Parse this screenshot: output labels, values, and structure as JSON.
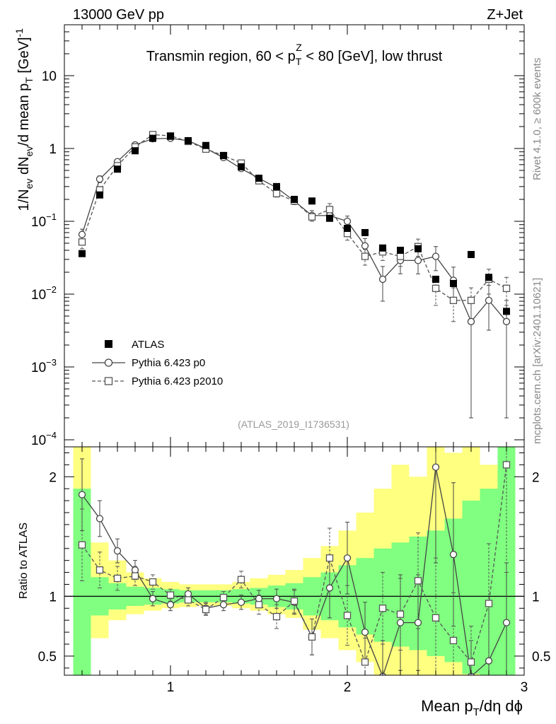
{
  "header": {
    "left": "13000 GeV pp",
    "right": "Z+Jet"
  },
  "side_labels": {
    "rivet": "Rivet 4.1.0, ≥ 600k events",
    "mcplots": "mcplots.cern.ch [arXiv:2401.10621]"
  },
  "colors": {
    "band_outer": "#ffff80",
    "band_inner": "#80ff80",
    "data": "#000000",
    "p0": "#444444",
    "p2010": "#555555"
  },
  "chart_data": [
    {
      "type": "scatter",
      "role": "main",
      "title": "Transmin region, 60 < p_T^Z < 80 [GeV], low thrust",
      "title_parts": {
        "pre": "Transmin region, 60 < p",
        "sub": "T",
        "sup": "Z",
        "post": " < 80 [GeV], low thrust"
      },
      "ylabel": "1/N_ev dN_ev/d mean p_T [GeV]^-1",
      "ylabel_parts": [
        "1/N",
        "ev",
        " dN",
        "ev",
        "/d mean p",
        "T",
        " [GeV]",
        "-1"
      ],
      "yscale": "log",
      "xlim": [
        0.4,
        3.0
      ],
      "ylim": [
        8e-05,
        50
      ],
      "ytick_labels": [
        {
          "value": 0.0001,
          "base": "10",
          "exp": "−4"
        },
        {
          "value": 0.001,
          "base": "10",
          "exp": "−3"
        },
        {
          "value": 0.01,
          "base": "10",
          "exp": "−2"
        },
        {
          "value": 0.1,
          "base": "10",
          "exp": "−1"
        },
        {
          "value": 1,
          "base": "1",
          "exp": ""
        },
        {
          "value": 10,
          "base": "10",
          "exp": ""
        }
      ],
      "watermark": "(ATLAS_2019_I1736531)",
      "legend": {
        "position": "lower-left",
        "entries": [
          "ATLAS",
          "Pythia 6.423 p0",
          "Pythia 6.423 p2010"
        ]
      },
      "series": [
        {
          "name": "ATLAS",
          "marker": "filled-square",
          "x": [
            0.5,
            0.6,
            0.7,
            0.8,
            0.9,
            1.0,
            1.1,
            1.2,
            1.3,
            1.4,
            1.5,
            1.6,
            1.7,
            1.8,
            1.9,
            2.0,
            2.1,
            2.2,
            2.3,
            2.4,
            2.5,
            2.6,
            2.7,
            2.8,
            2.9
          ],
          "y": [
            0.036,
            0.23,
            0.52,
            0.93,
            1.38,
            1.47,
            1.28,
            1.1,
            0.8,
            0.56,
            0.39,
            0.3,
            0.2,
            0.19,
            0.11,
            0.08,
            0.07,
            0.043,
            0.04,
            0.042,
            0.016,
            0.014,
            0.035,
            0.017,
            0.0058
          ]
        },
        {
          "name": "Pythia 6.423 p0",
          "marker": "open-circle",
          "line": "solid",
          "x": [
            0.5,
            0.6,
            0.7,
            0.8,
            0.9,
            1.0,
            1.1,
            1.2,
            1.3,
            1.4,
            1.5,
            1.6,
            1.7,
            1.8,
            1.9,
            2.0,
            2.1,
            2.2,
            2.3,
            2.4,
            2.5,
            2.6,
            2.7,
            2.8,
            2.9
          ],
          "y": [
            0.066,
            0.38,
            0.66,
            1.12,
            1.36,
            1.38,
            1.28,
            1.0,
            0.75,
            0.53,
            0.39,
            0.29,
            0.19,
            0.12,
            0.12,
            0.1,
            0.046,
            0.016,
            0.029,
            0.029,
            0.033,
            0.0155,
            0.0042,
            0.0082,
            0.0042
          ],
          "err": [
            0.012,
            0.04,
            0.05,
            0.06,
            0.06,
            0.06,
            0.06,
            0.05,
            0.04,
            0.03,
            0.03,
            0.025,
            0.02,
            0.02,
            0.02,
            0.018,
            0.012,
            0.008,
            0.01,
            0.01,
            0.012,
            0.008,
            0.004,
            0.005,
            0.004
          ]
        },
        {
          "name": "Pythia 6.423 p2010",
          "marker": "open-square",
          "line": "dashed",
          "x": [
            0.5,
            0.6,
            0.7,
            0.8,
            0.9,
            1.0,
            1.1,
            1.2,
            1.3,
            1.4,
            1.5,
            1.6,
            1.7,
            1.8,
            1.9,
            2.0,
            2.1,
            2.2,
            2.3,
            2.4,
            2.5,
            2.6,
            2.7,
            2.8,
            2.9
          ],
          "y": [
            0.052,
            0.27,
            0.58,
            1.05,
            1.55,
            1.49,
            1.25,
            0.98,
            0.8,
            0.63,
            0.36,
            0.24,
            0.19,
            0.115,
            0.145,
            0.068,
            0.033,
            0.038,
            0.033,
            0.045,
            0.012,
            0.0082,
            0.0082,
            0.016,
            0.012
          ],
          "err": [
            0.01,
            0.03,
            0.04,
            0.05,
            0.06,
            0.06,
            0.05,
            0.05,
            0.04,
            0.03,
            0.03,
            0.025,
            0.02,
            0.015,
            0.03,
            0.013,
            0.008,
            0.009,
            0.009,
            0.012,
            0.005,
            0.004,
            0.004,
            0.006,
            0.005
          ]
        }
      ]
    },
    {
      "type": "scatter",
      "role": "ratio",
      "xlabel": "Mean p_T/dη dϕ",
      "xlabel_parts": [
        "Mean p",
        "T",
        "/dη dϕ"
      ],
      "ylabel": "Ratio to ATLAS",
      "xlim": [
        0.4,
        3.0
      ],
      "ylim": [
        0.34,
        2.25
      ],
      "xticks": [
        1,
        2,
        3
      ],
      "yticks": [
        0.5,
        1,
        2
      ],
      "reference_line": 1,
      "bands": {
        "x_edges": [
          0.45,
          0.55,
          0.65,
          0.75,
          0.85,
          0.95,
          1.05,
          1.15,
          1.25,
          1.35,
          1.45,
          1.55,
          1.65,
          1.75,
          1.85,
          1.95,
          2.05,
          2.15,
          2.25,
          2.35,
          2.45,
          2.55,
          2.65,
          2.75,
          2.85,
          2.95
        ],
        "outer": [
          [
            0.3,
            3.0
          ],
          [
            0.65,
            1.45
          ],
          [
            0.8,
            1.3
          ],
          [
            0.85,
            1.2
          ],
          [
            0.88,
            1.15
          ],
          [
            0.9,
            1.12
          ],
          [
            0.91,
            1.1
          ],
          [
            0.92,
            1.1
          ],
          [
            0.92,
            1.1
          ],
          [
            0.9,
            1.12
          ],
          [
            0.88,
            1.15
          ],
          [
            0.85,
            1.18
          ],
          [
            0.82,
            1.22
          ],
          [
            0.72,
            1.32
          ],
          [
            0.65,
            1.42
          ],
          [
            0.55,
            1.55
          ],
          [
            0.45,
            1.7
          ],
          [
            0.3,
            1.9
          ],
          [
            0.3,
            2.1
          ],
          [
            0.3,
            2.0
          ],
          [
            0.3,
            2.3
          ],
          [
            0.3,
            2.2
          ],
          [
            0.3,
            2.5
          ],
          [
            0.3,
            2.1
          ],
          [
            0.3,
            3.0
          ]
        ],
        "inner": [
          [
            0.3,
            1.9
          ],
          [
            0.84,
            1.16
          ],
          [
            0.89,
            1.11
          ],
          [
            0.92,
            1.08
          ],
          [
            0.93,
            1.07
          ],
          [
            0.94,
            1.06
          ],
          [
            0.95,
            1.05
          ],
          [
            0.95,
            1.05
          ],
          [
            0.95,
            1.05
          ],
          [
            0.94,
            1.06
          ],
          [
            0.93,
            1.07
          ],
          [
            0.91,
            1.09
          ],
          [
            0.89,
            1.11
          ],
          [
            0.84,
            1.16
          ],
          [
            0.8,
            1.2
          ],
          [
            0.74,
            1.26
          ],
          [
            0.68,
            1.32
          ],
          [
            0.62,
            1.4
          ],
          [
            0.58,
            1.45
          ],
          [
            0.55,
            1.5
          ],
          [
            0.5,
            1.55
          ],
          [
            0.45,
            1.65
          ],
          [
            0.35,
            1.8
          ],
          [
            0.3,
            1.9
          ],
          [
            0.3,
            2.5
          ]
        ]
      },
      "series": [
        {
          "name": "Pythia 6.423 p0",
          "marker": "open-circle",
          "line": "solid",
          "x": [
            0.5,
            0.6,
            0.7,
            0.8,
            0.9,
            1.0,
            1.1,
            1.2,
            1.3,
            1.4,
            1.5,
            1.6,
            1.7,
            1.8,
            1.9,
            2.0,
            2.1,
            2.2,
            2.3,
            2.4,
            2.5,
            2.6,
            2.7,
            2.8,
            2.9
          ],
          "y": [
            1.85,
            1.65,
            1.38,
            1.22,
            0.98,
            0.93,
            1.02,
            0.9,
            0.93,
            0.95,
            0.98,
            0.98,
            0.95,
            0.66,
            1.07,
            1.32,
            0.7,
            0.33,
            0.78,
            0.78,
            2.08,
            1.35,
            0.33,
            0.46,
            0.78
          ],
          "err": [
            0.3,
            0.15,
            0.1,
            0.08,
            0.06,
            0.05,
            0.05,
            0.05,
            0.05,
            0.06,
            0.07,
            0.08,
            0.1,
            0.15,
            0.25,
            0.3,
            0.25,
            0.3,
            0.4,
            0.4,
            0.8,
            0.6,
            0.3,
            0.5,
            0.5
          ]
        },
        {
          "name": "Pythia 6.423 p2010",
          "marker": "open-square",
          "line": "dashed",
          "x": [
            0.5,
            0.6,
            0.7,
            0.8,
            0.9,
            1.0,
            1.1,
            1.2,
            1.3,
            1.4,
            1.5,
            1.6,
            1.7,
            1.8,
            1.9,
            2.0,
            2.1,
            2.2,
            2.3,
            2.4,
            2.5,
            2.6,
            2.7,
            2.8,
            2.9
          ],
          "y": [
            1.43,
            1.22,
            1.15,
            1.17,
            1.12,
            1.01,
            0.97,
            0.89,
            0.99,
            1.14,
            0.93,
            0.83,
            0.96,
            0.66,
            1.32,
            0.84,
            0.45,
            0.9,
            0.85,
            1.13,
            0.82,
            0.63,
            0.45,
            0.94,
            2.1
          ],
          "err": [
            0.3,
            0.15,
            0.1,
            0.08,
            0.06,
            0.05,
            0.05,
            0.05,
            0.05,
            0.07,
            0.08,
            0.1,
            0.1,
            0.15,
            0.25,
            0.25,
            0.2,
            0.3,
            0.3,
            0.4,
            0.5,
            0.4,
            0.3,
            0.5,
            0.9
          ]
        }
      ]
    }
  ]
}
